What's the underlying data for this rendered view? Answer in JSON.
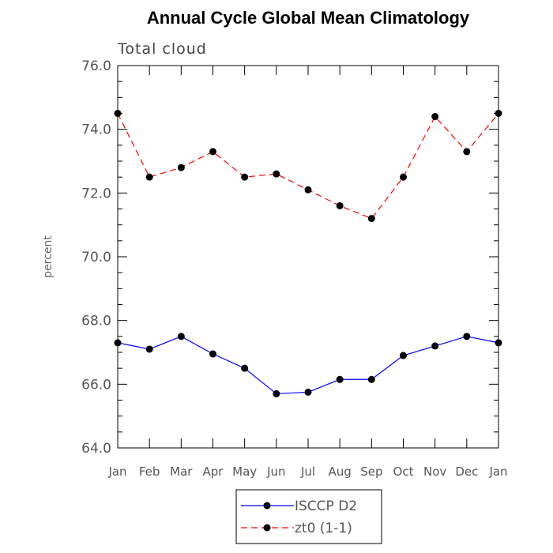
{
  "chart_data": {
    "type": "line",
    "title": "Annual Cycle Global Mean Climatology",
    "subtitle": "Total cloud",
    "xlabel": "",
    "ylabel": "percent",
    "categories": [
      "Jan",
      "Feb",
      "Mar",
      "Apr",
      "May",
      "Jun",
      "Jul",
      "Aug",
      "Sep",
      "Oct",
      "Nov",
      "Dec",
      "Jan"
    ],
    "ylim": [
      64.0,
      76.0
    ],
    "yticks": [
      "64.0",
      "66.0",
      "68.0",
      "70.0",
      "72.0",
      "74.0",
      "76.0"
    ],
    "grid": false,
    "legend_position": "bottom",
    "series": [
      {
        "name": "ISCCP D2",
        "color": "#0000ff",
        "dash": "solid",
        "marker": "filled-circle",
        "values": [
          67.3,
          67.1,
          67.5,
          66.95,
          66.5,
          65.7,
          65.75,
          66.15,
          66.15,
          66.9,
          67.2,
          67.5,
          67.3
        ]
      },
      {
        "name": "zt0 (1-1)",
        "color": "#ff0000",
        "dash": "dashed",
        "marker": "filled-circle",
        "values": [
          74.5,
          72.5,
          72.8,
          73.3,
          72.5,
          72.6,
          72.1,
          71.6,
          71.2,
          72.5,
          74.4,
          73.3,
          74.5
        ]
      }
    ]
  }
}
